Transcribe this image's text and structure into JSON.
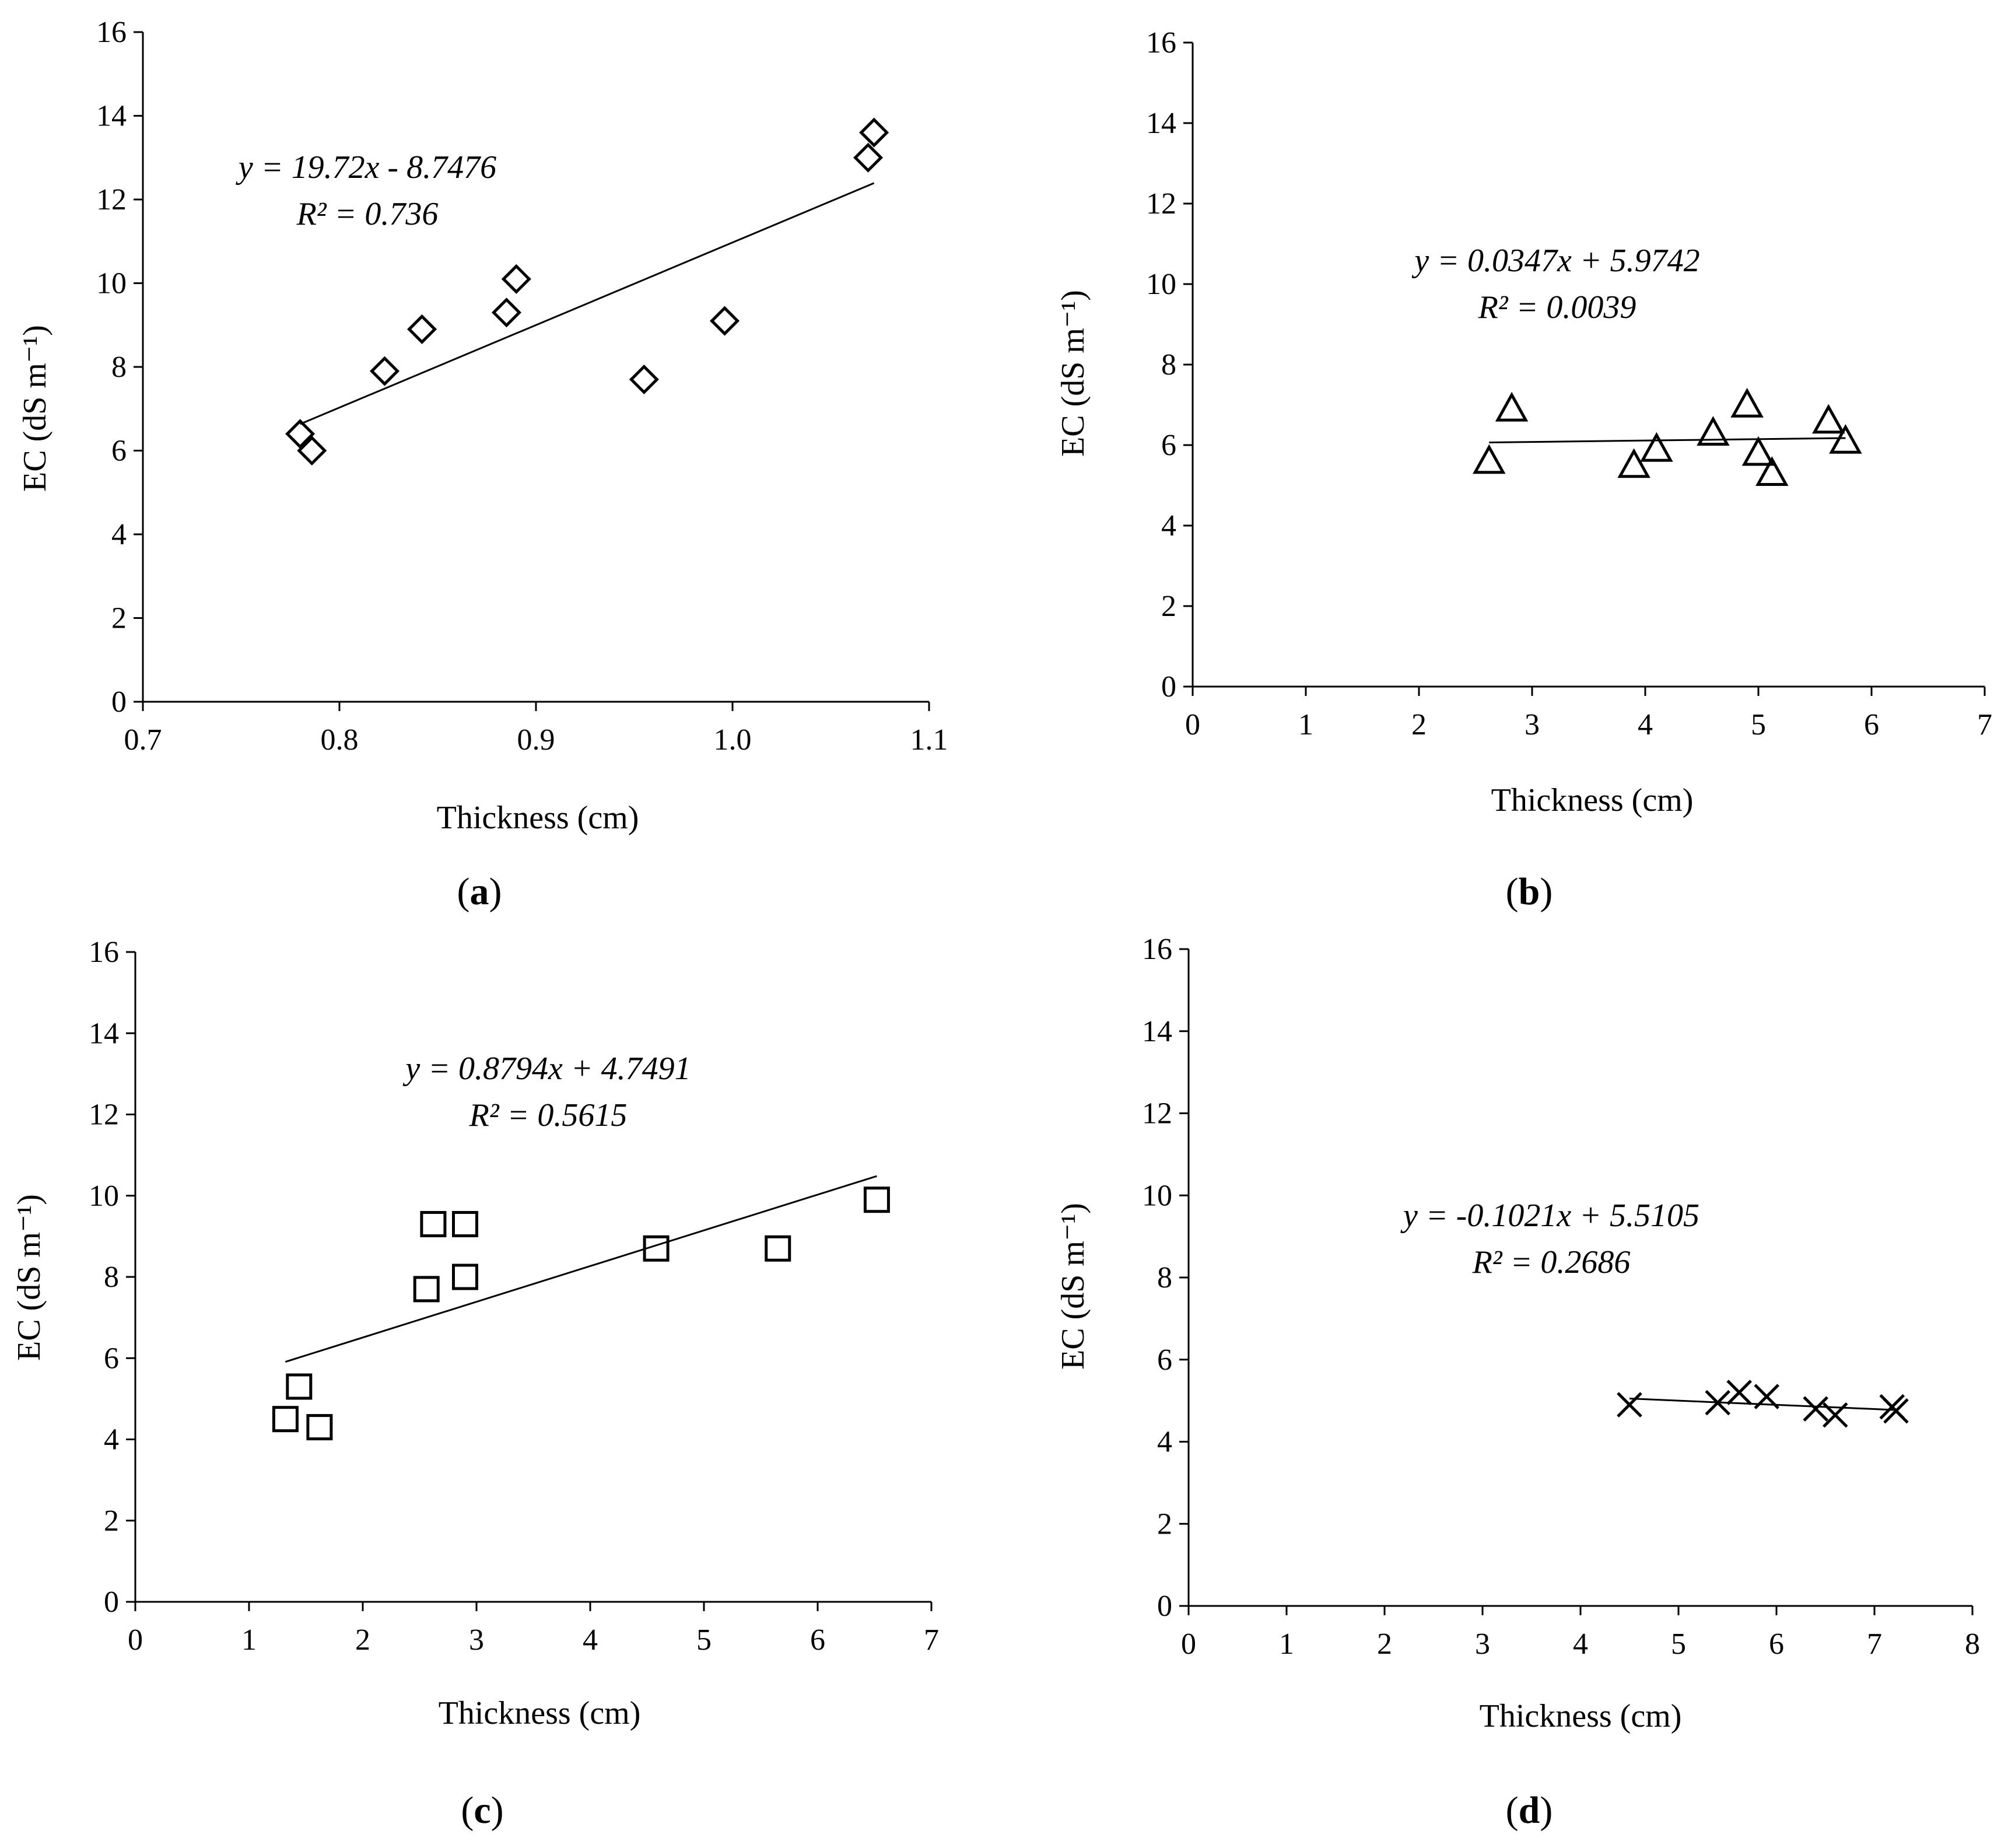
{
  "chart_data": [
    {
      "type": "scatter",
      "panel_label": "a",
      "marker": "diamond",
      "xlabel": "Thickness (cm)",
      "ylabel": "EC (dS m⁻¹)",
      "xlim": [
        0.7,
        1.1
      ],
      "ylim": [
        0,
        16
      ],
      "xticks": [
        "0.7",
        "0.8",
        "0.9",
        "1.0",
        "1.1"
      ],
      "yticks": [
        "0",
        "2",
        "4",
        "6",
        "8",
        "10",
        "12",
        "14",
        "16"
      ],
      "x": [
        0.78,
        0.786,
        0.823,
        0.842,
        0.885,
        0.89,
        0.955,
        0.996,
        1.069,
        1.072
      ],
      "y": [
        6.4,
        6.0,
        7.9,
        8.9,
        9.3,
        10.1,
        7.7,
        9.1,
        13.0,
        13.6
      ],
      "trendline": {
        "slope": 19.72,
        "intercept": -8.7476,
        "x_range": [
          0.78,
          1.072
        ]
      },
      "equation": "y = 19.72x - 8.7476",
      "r2": "R² = 0.736"
    },
    {
      "type": "scatter",
      "panel_label": "b",
      "marker": "triangle",
      "xlabel": "Thickness (cm)",
      "ylabel": "EC (dS m⁻¹)",
      "xlim": [
        0,
        7
      ],
      "ylim": [
        0,
        16
      ],
      "xticks": [
        "0",
        "1",
        "2",
        "3",
        "4",
        "5",
        "6",
        "7"
      ],
      "yticks": [
        "0",
        "2",
        "4",
        "6",
        "8",
        "10",
        "12",
        "14",
        "16"
      ],
      "x": [
        2.62,
        2.82,
        3.9,
        4.1,
        4.6,
        4.9,
        5.0,
        5.12,
        5.62,
        5.77
      ],
      "y": [
        5.6,
        6.9,
        5.5,
        5.9,
        6.3,
        7.0,
        5.8,
        5.3,
        6.6,
        6.1
      ],
      "trendline": {
        "slope": 0.0347,
        "intercept": 5.9742,
        "x_range": [
          2.62,
          5.77
        ]
      },
      "equation": "y = 0.0347x + 5.9742",
      "r2": "R² = 0.0039"
    },
    {
      "type": "scatter",
      "panel_label": "c",
      "marker": "square",
      "xlabel": "Thickness (cm)",
      "ylabel": "EC (dS m⁻¹)",
      "xlim": [
        0,
        7
      ],
      "ylim": [
        0,
        16
      ],
      "xticks": [
        "0",
        "1",
        "2",
        "3",
        "4",
        "5",
        "6",
        "7"
      ],
      "yticks": [
        "0",
        "2",
        "4",
        "6",
        "8",
        "10",
        "12",
        "14",
        "16"
      ],
      "x": [
        1.32,
        1.44,
        1.62,
        2.56,
        2.62,
        2.9,
        2.9,
        4.58,
        5.65,
        6.52
      ],
      "y": [
        4.5,
        5.3,
        4.3,
        7.7,
        9.3,
        9.3,
        8.0,
        8.7,
        8.7,
        9.9
      ],
      "trendline": {
        "slope": 0.8794,
        "intercept": 4.7491,
        "x_range": [
          1.32,
          6.52
        ]
      },
      "equation": "y = 0.8794x + 4.7491",
      "r2": "R² = 0.5615"
    },
    {
      "type": "scatter",
      "panel_label": "d",
      "marker": "x",
      "xlabel": "Thickness (cm)",
      "ylabel": "EC (dS m⁻¹)",
      "xlim": [
        0,
        8
      ],
      "ylim": [
        0,
        16
      ],
      "xticks": [
        "0",
        "1",
        "2",
        "3",
        "4",
        "5",
        "6",
        "7",
        "8"
      ],
      "yticks": [
        "0",
        "2",
        "4",
        "6",
        "8",
        "10",
        "12",
        "14",
        "16"
      ],
      "x": [
        4.5,
        5.4,
        5.62,
        5.9,
        6.4,
        6.6,
        7.18,
        7.22
      ],
      "y": [
        4.9,
        4.95,
        5.2,
        5.1,
        4.8,
        4.65,
        4.85,
        4.75
      ],
      "trendline": {
        "slope": -0.1021,
        "intercept": 5.5105,
        "x_range": [
          4.5,
          7.22
        ]
      },
      "equation": "y = -0.1021x + 5.5105",
      "r2": "R² = 0.2686"
    }
  ]
}
